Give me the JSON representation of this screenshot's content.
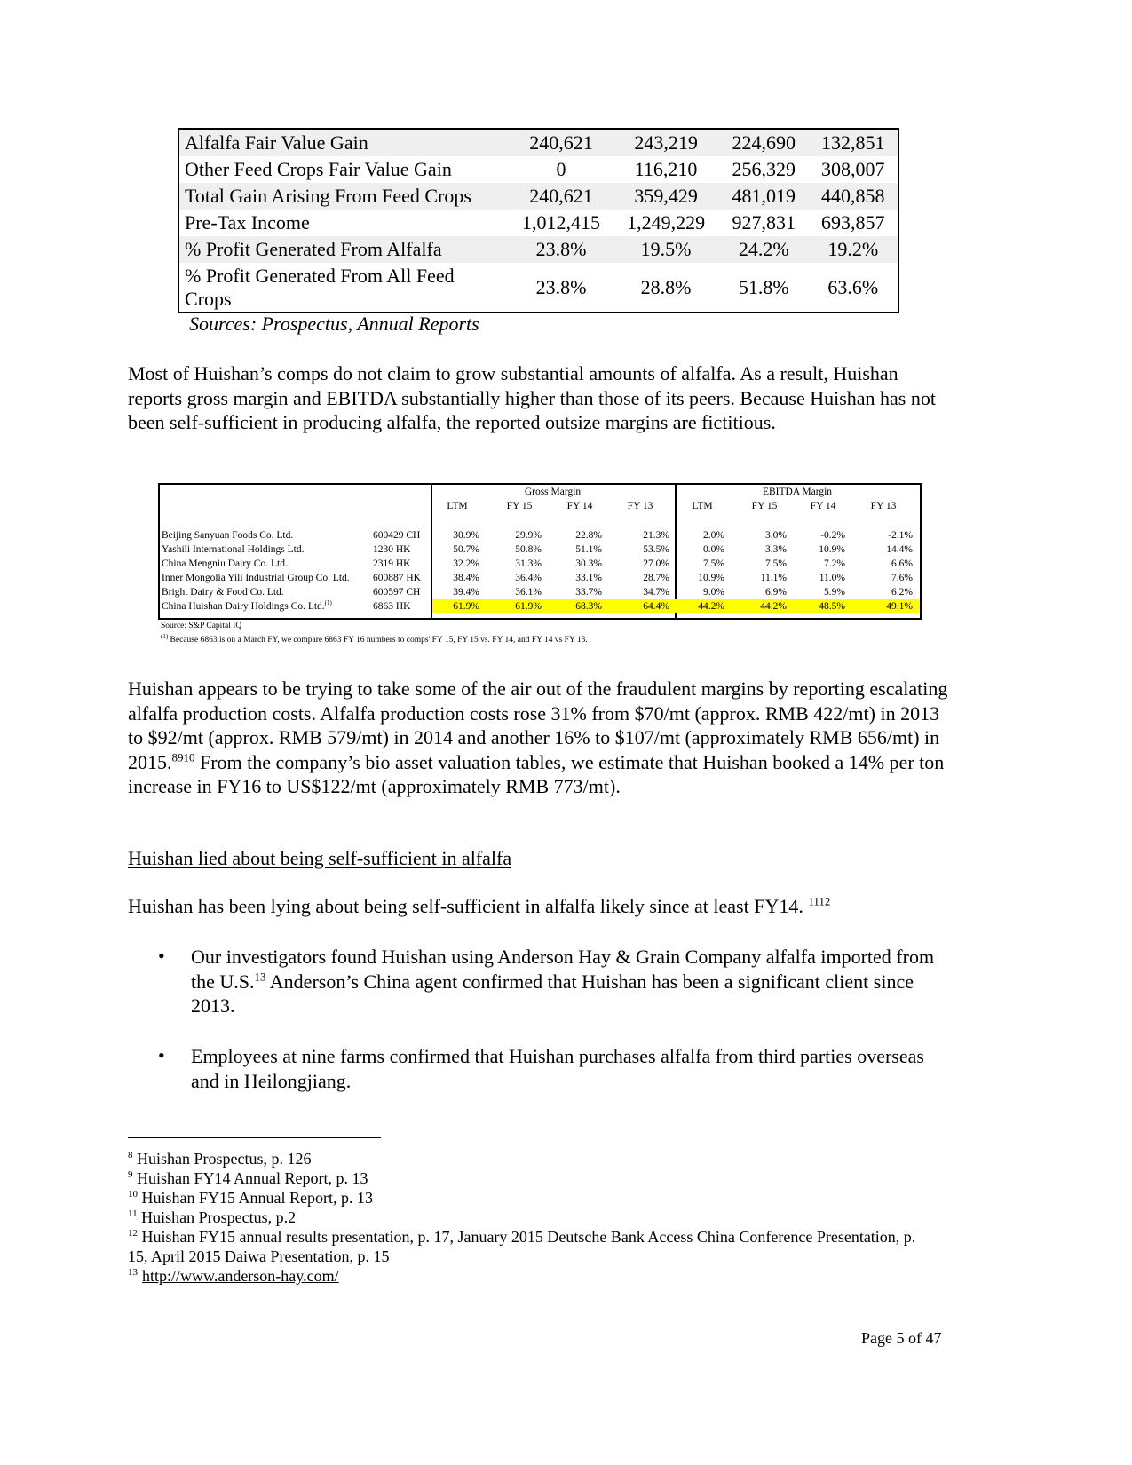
{
  "table1": {
    "rows": [
      {
        "label": "Alfalfa Fair Value Gain",
        "values": [
          "240,621",
          "243,219",
          "224,690",
          "132,851"
        ]
      },
      {
        "label": "Other Feed Crops Fair Value Gain",
        "values": [
          "0",
          "116,210",
          "256,329",
          "308,007"
        ]
      },
      {
        "label": "Total Gain Arising From Feed Crops",
        "values": [
          "240,621",
          "359,429",
          "481,019",
          "440,858"
        ]
      },
      {
        "label": "Pre-Tax Income",
        "values": [
          "1,012,415",
          "1,249,229",
          "927,831",
          "693,857"
        ]
      },
      {
        "label": "% Profit Generated From Alfalfa",
        "values": [
          "23.8%",
          "19.5%",
          "24.2%",
          "19.2%"
        ]
      },
      {
        "label": "% Profit Generated From All Feed Crops",
        "values": [
          "23.8%",
          "28.8%",
          "51.8%",
          "63.6%"
        ]
      }
    ],
    "source": "Sources: Prospectus, Annual Reports"
  },
  "para1": "Most of Huishan’s comps do not claim to grow substantial amounts of alfalfa.  As a result, Huishan reports gross margin and EBITDA substantially higher than those of its peers.  Because Huishan has not been self-sufficient in producing alfalfa, the reported outsize margins are fictitious.",
  "comps": {
    "group1": "Gross Margin",
    "group2": "EBITDA Margin",
    "cols": [
      "LTM",
      "FY 15",
      "FY 14",
      "FY 13",
      "LTM",
      "FY 15",
      "FY 14",
      "FY 13"
    ],
    "highlight_color": "#ffff00",
    "rows": [
      {
        "name": "Beijing Sanyuan Foods Co. Ltd.",
        "ticker": "600429 CH",
        "values": [
          "30.9%",
          "29.9%",
          "22.8%",
          "21.3%",
          "2.0%",
          "3.0%",
          "-0.2%",
          "-2.1%"
        ]
      },
      {
        "name": "Yashili International Holdings Ltd.",
        "ticker": "1230 HK",
        "values": [
          "50.7%",
          "50.8%",
          "51.1%",
          "53.5%",
          "0.0%",
          "3.3%",
          "10.9%",
          "14.4%"
        ]
      },
      {
        "name": "China Mengniu Dairy Co. Ltd.",
        "ticker": "2319 HK",
        "values": [
          "32.2%",
          "31.3%",
          "30.3%",
          "27.0%",
          "7.5%",
          "7.5%",
          "7.2%",
          "6.6%"
        ]
      },
      {
        "name": "Inner Mongolia Yili Industrial Group Co. Ltd.",
        "ticker": "600887 HK",
        "values": [
          "38.4%",
          "36.4%",
          "33.1%",
          "28.7%",
          "10.9%",
          "11.1%",
          "11.0%",
          "7.6%"
        ]
      },
      {
        "name": "Bright Dairy & Food Co. Ltd.",
        "ticker": "600597 CH",
        "values": [
          "39.4%",
          "36.1%",
          "33.7%",
          "34.7%",
          "9.0%",
          "6.9%",
          "5.9%",
          "6.2%"
        ]
      },
      {
        "name": "China Huishan Dairy Holdings Co. Ltd.",
        "name_sup": "(1)",
        "ticker": "6863 HK",
        "values": [
          "61.9%",
          "61.9%",
          "68.3%",
          "64.4%",
          "44.2%",
          "44.2%",
          "48.5%",
          "49.1%"
        ]
      }
    ],
    "source": "Source: S&P Capital IQ",
    "note_sup": "(1)",
    "note": " Because 6863 is on a March FY, we compare 6863 FY 16 numbers to comps' FY 15, FY 15 vs. FY 14, and FY 14 vs FY 13."
  },
  "para2a": "Huishan appears to be trying to take some of the air out of the fraudulent margins by reporting escalating alfalfa production costs.  Alfalfa production costs rose 31% from $70/mt (approx. RMB 422/mt) in 2013 to $92/mt (approx. RMB 579/mt) in 2014 and another 16% to $107/mt (approximately RMB 656/mt) in 2015.",
  "para2sup": "8910",
  "para2b": "  From the company’s bio asset valuation tables, we estimate that Huishan booked a 14% per ton increase in FY16 to US$122/mt (approximately RMB 773/mt).",
  "heading": "Huishan lied about being self-sufficient in alfalfa",
  "para3": "Huishan has been lying about being self-sufficient in alfalfa likely since at least FY14. ",
  "para3sup": "1112",
  "bullet1a": "Our investigators found Huishan using Anderson Hay & Grain Company alfalfa imported from the U.S.",
  "bullet1sup": "13",
  "bullet1b": "  Anderson’s China agent confirmed that Huishan has been a significant client since 2013.",
  "bullet2": "Employees at nine farms confirmed that Huishan purchases alfalfa from third parties overseas and in Heilongjiang.",
  "footnotes": [
    {
      "n": "8",
      "text": " Huishan Prospectus, p. 126"
    },
    {
      "n": "9",
      "text": " Huishan FY14 Annual Report, p. 13"
    },
    {
      "n": "10",
      "text": " Huishan FY15 Annual Report, p. 13"
    },
    {
      "n": "11",
      "text": " Huishan Prospectus, p.2"
    },
    {
      "n": "12",
      "text": " Huishan FY15 annual results presentation, p. 17, January 2015 Deutsche Bank Access China Conference Presentation, p. 15, April 2015 Daiwa Presentation, p. 15"
    },
    {
      "n": "13",
      "text": "http://www.anderson-hay.com/"
    }
  ],
  "page_number": "Page 5 of 47"
}
